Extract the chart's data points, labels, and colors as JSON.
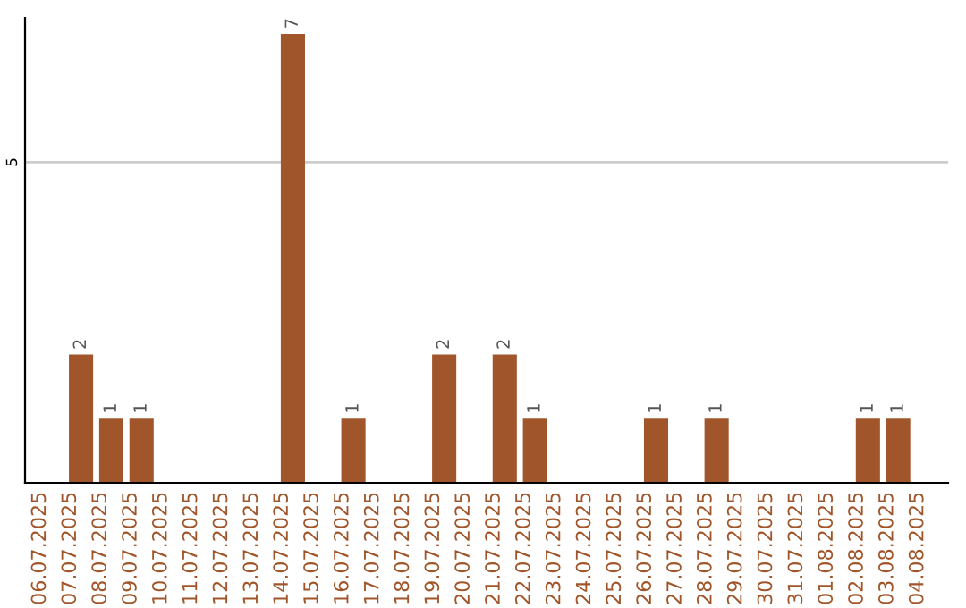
{
  "chart_data": {
    "type": "bar",
    "categories": [
      "06.07.2025",
      "07.07.2025",
      "08.07.2025",
      "09.07.2025",
      "10.07.2025",
      "11.07.2025",
      "12.07.2025",
      "13.07.2025",
      "14.07.2025",
      "15.07.2025",
      "16.07.2025",
      "17.07.2025",
      "18.07.2025",
      "19.07.2025",
      "20.07.2025",
      "21.07.2025",
      "22.07.2025",
      "23.07.2025",
      "24.07.2025",
      "25.07.2025",
      "26.07.2025",
      "27.07.2025",
      "28.07.2025",
      "29.07.2025",
      "30.07.2025",
      "31.07.2025",
      "01.08.2025",
      "02.08.2025",
      "03.08.2025",
      "04.08.2025"
    ],
    "values": [
      0,
      2,
      1,
      1,
      0,
      0,
      0,
      0,
      7,
      0,
      1,
      0,
      0,
      2,
      0,
      2,
      1,
      0,
      0,
      0,
      1,
      0,
      1,
      0,
      0,
      0,
      0,
      1,
      1,
      0
    ],
    "value_labels": [
      null,
      "2",
      "1",
      "1",
      null,
      null,
      null,
      null,
      "7",
      null,
      "1",
      null,
      null,
      "2",
      null,
      "2",
      "1",
      null,
      null,
      null,
      "1",
      null,
      "1",
      null,
      null,
      null,
      null,
      "1",
      "1",
      null
    ],
    "color": "#a0562a",
    "ylim": [
      0,
      7.25
    ],
    "yticks": [
      5
    ],
    "grid": "y",
    "legend": false
  }
}
